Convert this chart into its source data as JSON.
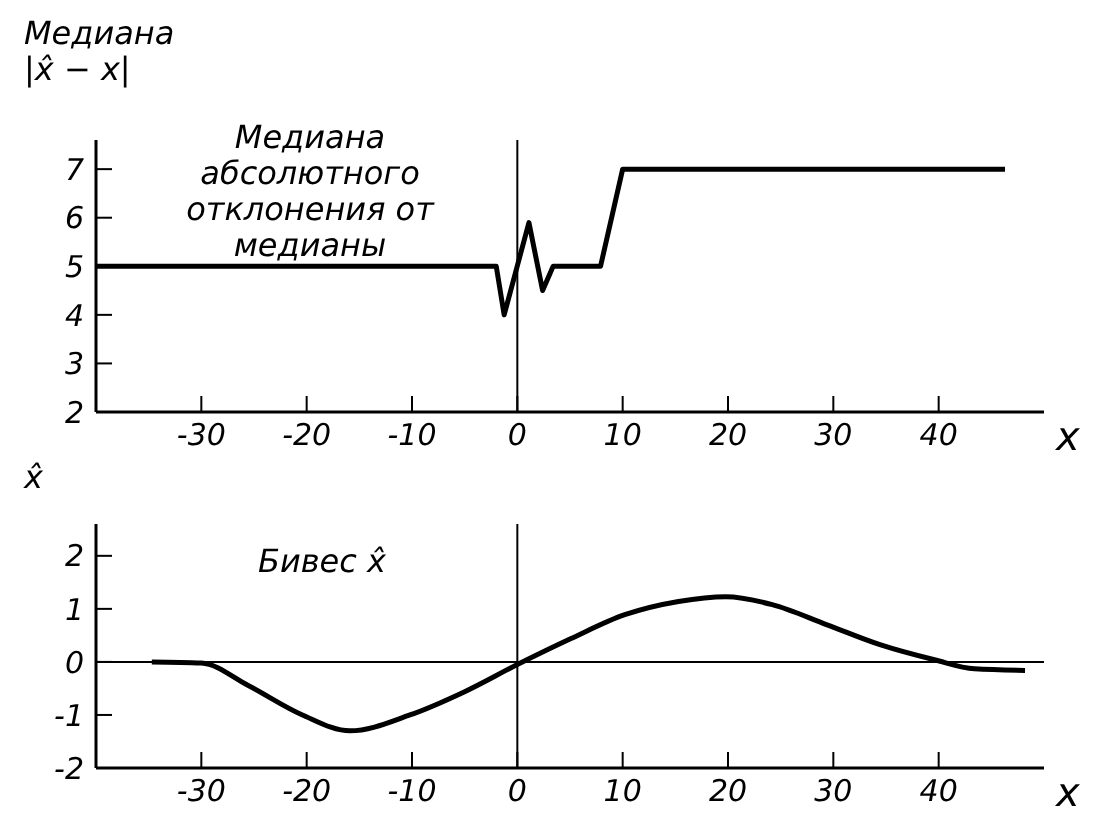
{
  "chart_data": [
    {
      "type": "line",
      "ylabel": "Медиана\n|x̂ − x|",
      "xlabel": "x",
      "xlim": [
        -40,
        50
      ],
      "xticks": [
        -30,
        -20,
        -10,
        0,
        10,
        20,
        30,
        40
      ],
      "ylim": [
        2,
        7.6
      ],
      "yticks": [
        2,
        3,
        4,
        5,
        6,
        7
      ],
      "grid": false,
      "line_style": "solid",
      "annotations": [
        "Медиана абсолютного отклонения от медианы"
      ],
      "ref_lines": [
        {
          "axis": "x",
          "value": 0,
          "color": "#000000"
        }
      ],
      "series": [
        {
          "color": "#000000",
          "x": [
            -40,
            -2,
            -1.25,
            1.1,
            2.4,
            3.4,
            7.9,
            10,
            46.3
          ],
          "values": [
            5,
            5,
            4,
            5.9,
            4.5,
            5,
            5,
            7,
            7
          ]
        }
      ]
    },
    {
      "type": "line",
      "ylabel": "x̂",
      "xlabel": "x",
      "xlim": [
        -40,
        50
      ],
      "xticks": [
        -30,
        -20,
        -10,
        0,
        10,
        20,
        30,
        40
      ],
      "ylim": [
        -2,
        2.6
      ],
      "yticks": [
        -2,
        -1,
        0,
        1,
        2
      ],
      "grid": false,
      "line_style": "solid",
      "annotations": [
        "Бивес x̂"
      ],
      "ref_lines": [
        {
          "axis": "x",
          "value": 0,
          "color": "#000000"
        },
        {
          "axis": "y",
          "value": 0,
          "color": "#000000"
        }
      ],
      "series": [
        {
          "color": "#000000",
          "x": [
            -34.7,
            -30,
            -25.5,
            -20.4,
            -15.9,
            -10.2,
            -5.1,
            0,
            5.1,
            10.2,
            15.3,
            19.8,
            24.2,
            29.4,
            34.5,
            39.6,
            43.4,
            48.2
          ],
          "values": [
            0,
            -0.02,
            -0.45,
            -1.0,
            -1.3,
            -1.0,
            -0.57,
            -0.05,
            0.44,
            0.89,
            1.14,
            1.23,
            1.08,
            0.7,
            0.32,
            0.04,
            -0.13,
            -0.16
          ]
        }
      ]
    }
  ]
}
